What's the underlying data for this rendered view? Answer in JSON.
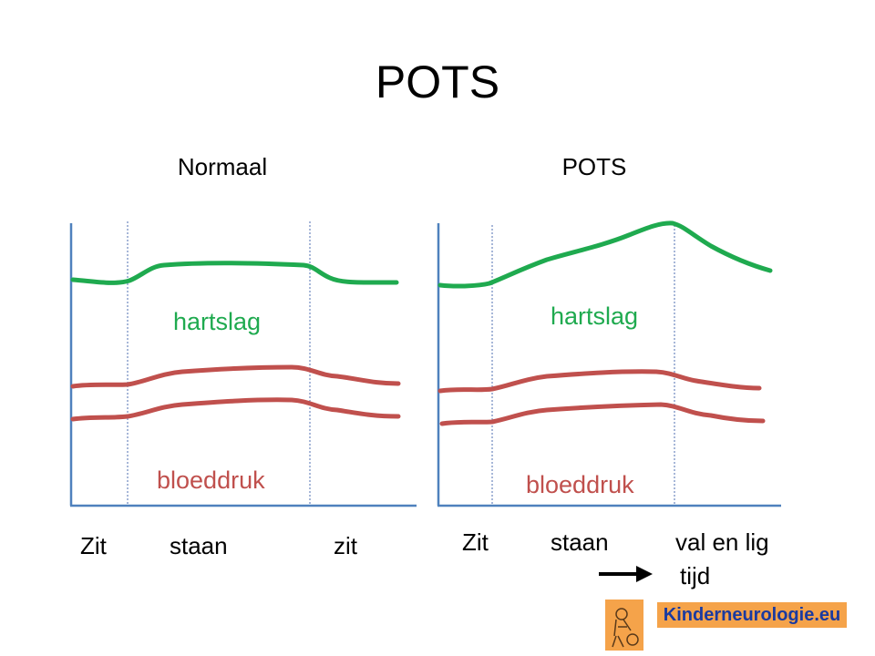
{
  "title": "POTS",
  "panels": [
    {
      "heading": "Normaal",
      "heart_label": "hartslag",
      "bp_label": "bloeddruk",
      "phases": [
        "Zit",
        "staan",
        "zit"
      ]
    },
    {
      "heading": "POTS",
      "heart_label": "hartslag",
      "bp_label": "bloeddruk",
      "phases": [
        "Zit",
        "staan",
        "val en lig"
      ]
    }
  ],
  "time_label": "tijd",
  "logo_text": "Kinderneurologie.eu",
  "colors": {
    "heart_rate": "#1faa4f",
    "blood_pressure": "#c0504d",
    "axis": "#4f81bd",
    "divider": "#4f6fb0",
    "logo_bg": "#f5a34a",
    "logo_text": "#1a3aa0"
  }
}
